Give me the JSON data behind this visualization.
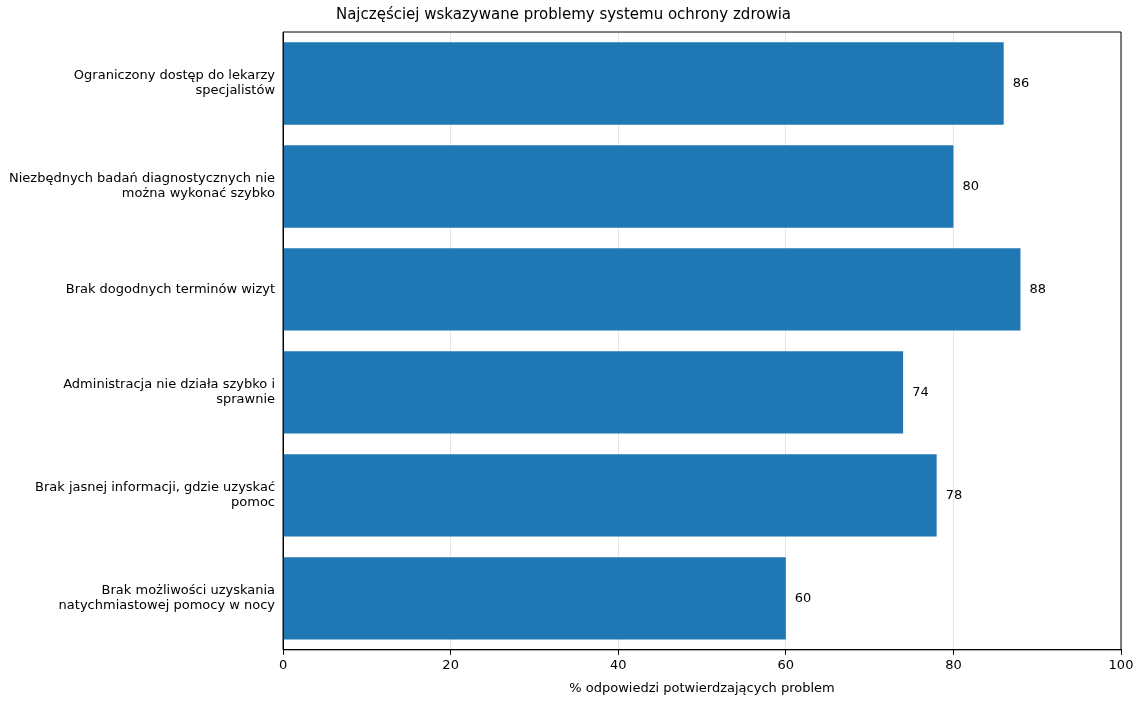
{
  "chart_data": {
    "type": "bar",
    "orientation": "horizontal",
    "title": "Najczęściej wskazywane problemy systemu ochrony zdrowia",
    "xlabel": "% odpowiedzi potwierdzających problem",
    "categories": [
      "Ograniczony dostęp do lekarzy specjalistów",
      "Niezbędnych badań diagnostycznych nie można wykonać szybko",
      "Brak dogodnych terminów wizyt",
      "Administracja nie działa szybko i sprawnie",
      "Brak jasnej informacji, gdzie uzyskać pomoc",
      "Brak możliwości uzyskania natychmiastowej pomocy w nocy"
    ],
    "values": [
      86,
      80,
      88,
      74,
      78,
      60
    ],
    "color": "#1f77b4",
    "xlim": [
      0,
      100
    ],
    "xticks": [
      0,
      20,
      40,
      60,
      80,
      100
    ],
    "grid": "x",
    "data_labels": true
  }
}
